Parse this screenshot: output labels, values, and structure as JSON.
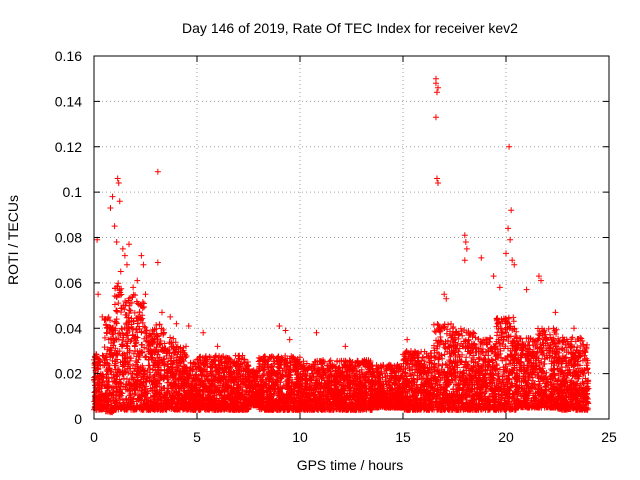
{
  "chart_data": {
    "type": "scatter",
    "title": "Day 146 of 2019, Rate Of TEC Index for receiver kev2",
    "xlabel": "GPS time / hours",
    "ylabel": "ROTI / TECUs",
    "xlim": [
      0,
      25
    ],
    "ylim": [
      0,
      0.16
    ],
    "grid": true,
    "marker": "plus",
    "color": "#ff0000",
    "x_ticks": [
      0,
      5,
      10,
      15,
      20,
      25
    ],
    "x_tick_labels": [
      "0",
      "5",
      "10",
      "15",
      "20",
      "25"
    ],
    "y_ticks": [
      0,
      0.02,
      0.04,
      0.06,
      0.08,
      0.1,
      0.12,
      0.14,
      0.16
    ],
    "y_tick_labels": [
      "0",
      "0.02",
      "0.04",
      "0.06",
      "0.08",
      "0.1",
      "0.12",
      "0.14",
      "0.16"
    ],
    "series": [
      {
        "name": "ROTI kev2",
        "notable_points": [
          {
            "x": 0.15,
            "y": 0.079
          },
          {
            "x": 0.2,
            "y": 0.055
          },
          {
            "x": 0.4,
            "y": 0.045
          },
          {
            "x": 0.8,
            "y": 0.093
          },
          {
            "x": 0.9,
            "y": 0.098
          },
          {
            "x": 1.0,
            "y": 0.085
          },
          {
            "x": 1.15,
            "y": 0.106
          },
          {
            "x": 1.2,
            "y": 0.104
          },
          {
            "x": 1.25,
            "y": 0.096
          },
          {
            "x": 1.1,
            "y": 0.078
          },
          {
            "x": 1.4,
            "y": 0.075
          },
          {
            "x": 1.5,
            "y": 0.072
          },
          {
            "x": 1.7,
            "y": 0.077
          },
          {
            "x": 1.3,
            "y": 0.065
          },
          {
            "x": 1.6,
            "y": 0.068
          },
          {
            "x": 1.9,
            "y": 0.058
          },
          {
            "x": 2.1,
            "y": 0.061
          },
          {
            "x": 2.3,
            "y": 0.072
          },
          {
            "x": 2.4,
            "y": 0.068
          },
          {
            "x": 2.5,
            "y": 0.055
          },
          {
            "x": 3.1,
            "y": 0.109
          },
          {
            "x": 3.1,
            "y": 0.069
          },
          {
            "x": 3.3,
            "y": 0.047
          },
          {
            "x": 3.7,
            "y": 0.045
          },
          {
            "x": 4.0,
            "y": 0.042
          },
          {
            "x": 4.6,
            "y": 0.041
          },
          {
            "x": 5.3,
            "y": 0.038
          },
          {
            "x": 6.0,
            "y": 0.032
          },
          {
            "x": 9.0,
            "y": 0.041
          },
          {
            "x": 9.3,
            "y": 0.039
          },
          {
            "x": 9.5,
            "y": 0.035
          },
          {
            "x": 10.8,
            "y": 0.038
          },
          {
            "x": 12.2,
            "y": 0.032
          },
          {
            "x": 15.2,
            "y": 0.035
          },
          {
            "x": 16.6,
            "y": 0.15
          },
          {
            "x": 16.6,
            "y": 0.148
          },
          {
            "x": 16.7,
            "y": 0.146
          },
          {
            "x": 16.65,
            "y": 0.144
          },
          {
            "x": 16.6,
            "y": 0.133
          },
          {
            "x": 16.65,
            "y": 0.106
          },
          {
            "x": 16.7,
            "y": 0.104
          },
          {
            "x": 17.0,
            "y": 0.055
          },
          {
            "x": 17.1,
            "y": 0.053
          },
          {
            "x": 18.0,
            "y": 0.081
          },
          {
            "x": 18.05,
            "y": 0.078
          },
          {
            "x": 18.1,
            "y": 0.075
          },
          {
            "x": 18.0,
            "y": 0.07
          },
          {
            "x": 18.8,
            "y": 0.071
          },
          {
            "x": 19.4,
            "y": 0.063
          },
          {
            "x": 19.7,
            "y": 0.058
          },
          {
            "x": 20.0,
            "y": 0.073
          },
          {
            "x": 20.1,
            "y": 0.084
          },
          {
            "x": 20.15,
            "y": 0.12
          },
          {
            "x": 20.25,
            "y": 0.092
          },
          {
            "x": 20.3,
            "y": 0.07
          },
          {
            "x": 20.4,
            "y": 0.068
          },
          {
            "x": 20.2,
            "y": 0.079
          },
          {
            "x": 21.0,
            "y": 0.057
          },
          {
            "x": 21.6,
            "y": 0.063
          },
          {
            "x": 21.7,
            "y": 0.061
          },
          {
            "x": 22.4,
            "y": 0.047
          },
          {
            "x": 23.3,
            "y": 0.04
          }
        ],
        "envelope": [
          {
            "x0": 0.0,
            "x1": 0.5,
            "ymin": 0.004,
            "ymax": 0.03
          },
          {
            "x0": 0.5,
            "x1": 1.0,
            "ymin": 0.003,
            "ymax": 0.045
          },
          {
            "x0": 1.0,
            "x1": 1.5,
            "ymin": 0.004,
            "ymax": 0.06
          },
          {
            "x0": 1.5,
            "x1": 2.0,
            "ymin": 0.004,
            "ymax": 0.055
          },
          {
            "x0": 2.0,
            "x1": 2.5,
            "ymin": 0.004,
            "ymax": 0.052
          },
          {
            "x0": 2.5,
            "x1": 3.0,
            "ymin": 0.004,
            "ymax": 0.04
          },
          {
            "x0": 3.0,
            "x1": 3.5,
            "ymin": 0.004,
            "ymax": 0.042
          },
          {
            "x0": 3.5,
            "x1": 4.0,
            "ymin": 0.004,
            "ymax": 0.036
          },
          {
            "x0": 4.0,
            "x1": 4.5,
            "ymin": 0.004,
            "ymax": 0.032
          },
          {
            "x0": 4.5,
            "x1": 5.0,
            "ymin": 0.004,
            "ymax": 0.025
          },
          {
            "x0": 5.0,
            "x1": 7.5,
            "ymin": 0.004,
            "ymax": 0.028
          },
          {
            "x0": 7.5,
            "x1": 8.0,
            "ymin": 0.006,
            "ymax": 0.022
          },
          {
            "x0": 8.0,
            "x1": 10.0,
            "ymin": 0.004,
            "ymax": 0.028
          },
          {
            "x0": 10.0,
            "x1": 11.0,
            "ymin": 0.004,
            "ymax": 0.026
          },
          {
            "x0": 11.0,
            "x1": 13.5,
            "ymin": 0.004,
            "ymax": 0.026
          },
          {
            "x0": 13.5,
            "x1": 15.0,
            "ymin": 0.005,
            "ymax": 0.024
          },
          {
            "x0": 15.0,
            "x1": 16.5,
            "ymin": 0.004,
            "ymax": 0.03
          },
          {
            "x0": 16.5,
            "x1": 17.5,
            "ymin": 0.004,
            "ymax": 0.042
          },
          {
            "x0": 17.5,
            "x1": 18.5,
            "ymin": 0.004,
            "ymax": 0.04
          },
          {
            "x0": 18.5,
            "x1": 19.5,
            "ymin": 0.004,
            "ymax": 0.036
          },
          {
            "x0": 19.5,
            "x1": 20.5,
            "ymin": 0.004,
            "ymax": 0.045
          },
          {
            "x0": 20.5,
            "x1": 21.5,
            "ymin": 0.005,
            "ymax": 0.036
          },
          {
            "x0": 21.5,
            "x1": 22.5,
            "ymin": 0.005,
            "ymax": 0.04
          },
          {
            "x0": 22.5,
            "x1": 24.0,
            "ymin": 0.004,
            "ymax": 0.036
          }
        ]
      }
    ]
  }
}
